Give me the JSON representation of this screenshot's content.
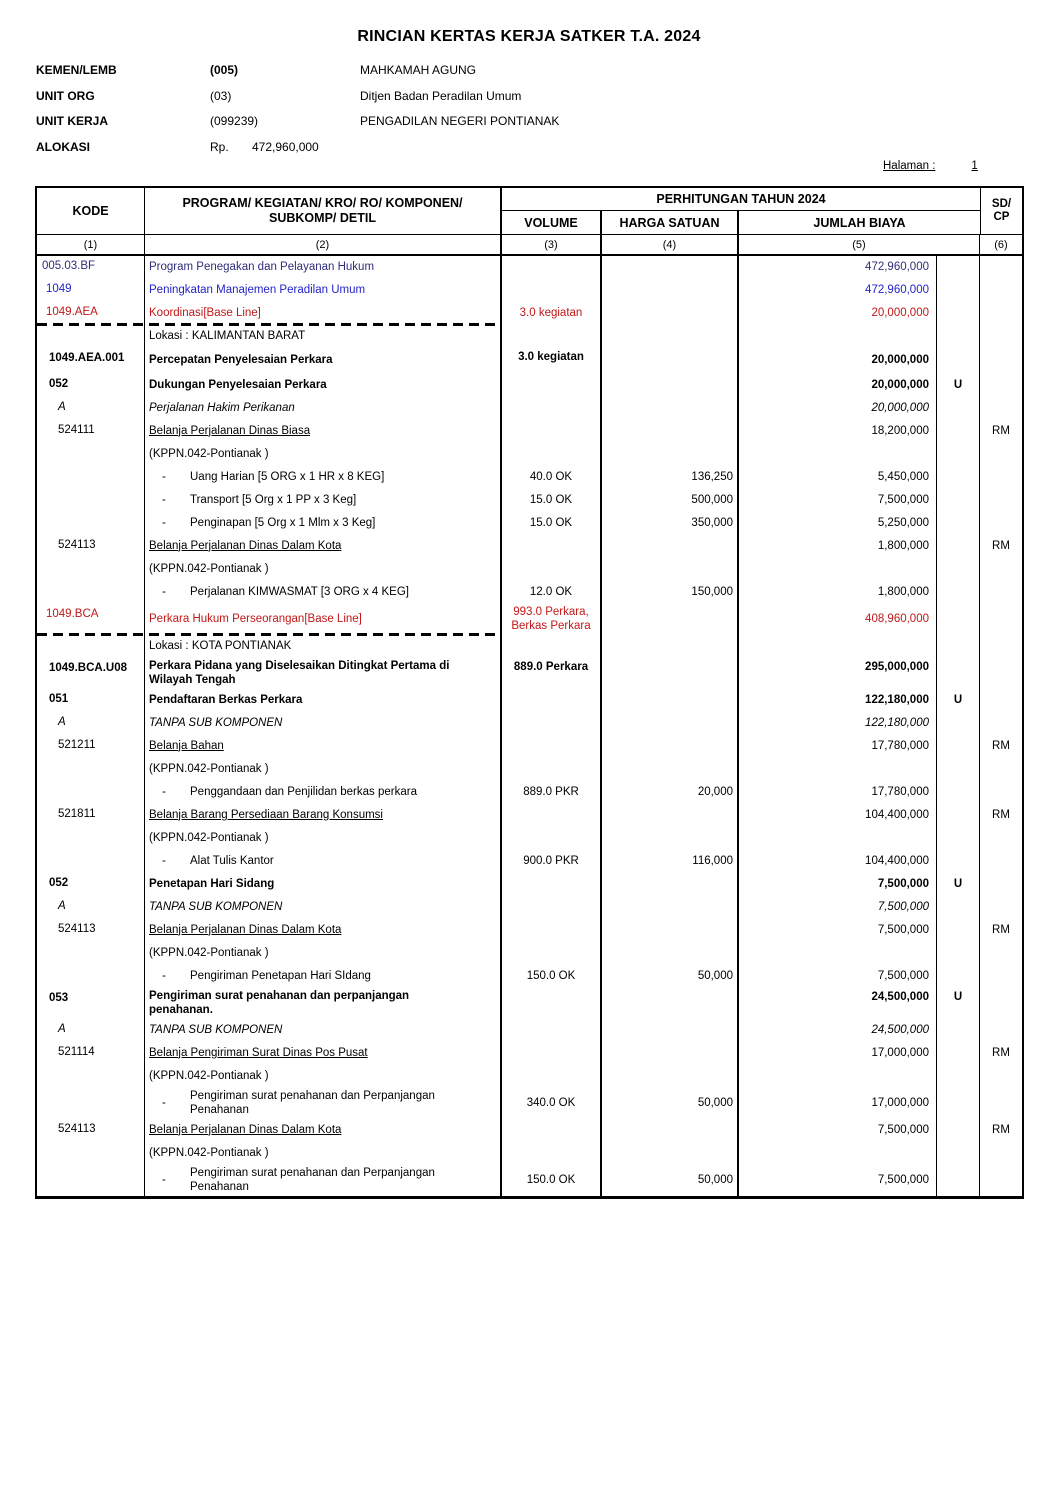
{
  "title": "RINCIAN KERTAS KERJA SATKER T.A. 2024",
  "page_label": "Halaman :",
  "page_number": "1",
  "meta": [
    {
      "label": "KEMEN/LEMB",
      "code": "(005)",
      "value": "MAHKAMAH AGUNG"
    },
    {
      "label": "UNIT ORG",
      "code": "(03)",
      "value": "Ditjen Badan Peradilan Umum"
    },
    {
      "label": "UNIT KERJA",
      "code": "(099239)",
      "value": "PENGADILAN NEGERI PONTIANAK"
    },
    {
      "label": "ALOKASI",
      "code": "Rp.",
      "value": "472,960,000"
    }
  ],
  "colors": {
    "program": "#2E2E7A",
    "kegiatan": "#2323C8",
    "kro": "#C01818",
    "text": "#000000"
  },
  "table": {
    "headers": {
      "kode": "KODE",
      "program_line1": "PROGRAM/ KEGIATAN/ KRO/ RO/ KOMPONEN/",
      "program_line2": "SUBKOMP/ DETIL",
      "perhitungan": "PERHITUNGAN TAHUN 2024",
      "volume": "VOLUME",
      "harga_satuan": "HARGA SATUAN",
      "jumlah_biaya": "JUMLAH BIAYA",
      "sd_line1": "SD/",
      "sd_line2": "CP",
      "col_numbers": [
        "(1)",
        "(2)",
        "(3)",
        "(4)",
        "(5)",
        "(6)"
      ]
    },
    "rows": [
      {
        "style": "program",
        "kode": "005.03.BF",
        "desc": "Program Penegakan dan Pelayanan Hukum",
        "jumlah": "472,960,000"
      },
      {
        "style": "kegiatan",
        "kode": "1049",
        "desc": "Peningkatan Manajemen Peradilan Umum",
        "jumlah": "472,960,000"
      },
      {
        "style": "kro",
        "kode": "1049.AEA",
        "desc": "Koordinasi[Base Line]",
        "volume": "3.0 kegiatan",
        "jumlah": "20,000,000"
      },
      {
        "style": "lokasi",
        "desc": "Lokasi : KALIMANTAN BARAT",
        "dashedTop": true
      },
      {
        "style": "ro",
        "kode": "1049.AEA.001",
        "desc": "Percepatan Penyelesaian Perkara",
        "volume": "3.0 kegiatan",
        "jumlah": "20,000,000",
        "volTop": true
      },
      {
        "style": "komponen",
        "kode": "052",
        "desc": "Dukungan Penyelesaian Perkara",
        "jumlah": "20,000,000",
        "flag": "U"
      },
      {
        "style": "sub",
        "kode": "A",
        "desc": "Perjalanan Hakim Perikanan",
        "jumlah": "20,000,000"
      },
      {
        "style": "akun",
        "kode": "524111",
        "desc": "Belanja Perjalanan Dinas Biasa",
        "jumlah": "18,200,000",
        "sdcp": "RM"
      },
      {
        "style": "kppn",
        "desc": "(KPPN.042-Pontianak )"
      },
      {
        "style": "detail",
        "desc": "Uang Harian [5 ORG x 1 HR x 8 KEG]",
        "volume": "40.0 OK",
        "harga": "136,250",
        "jumlah": "5,450,000"
      },
      {
        "style": "detail",
        "desc": "Transport [5 Org x 1 PP x 3 Keg]",
        "volume": "15.0 OK",
        "harga": "500,000",
        "jumlah": "7,500,000"
      },
      {
        "style": "detail",
        "desc": "Penginapan [5 Org x 1 Mlm x 3 Keg]",
        "volume": "15.0 OK",
        "harga": "350,000",
        "jumlah": "5,250,000"
      },
      {
        "style": "akun",
        "kode": "524113",
        "desc": "Belanja Perjalanan Dinas Dalam Kota",
        "jumlah": "1,800,000",
        "sdcp": "RM"
      },
      {
        "style": "kppn",
        "desc": "(KPPN.042-Pontianak )"
      },
      {
        "style": "detail",
        "desc": "Perjalanan KIMWASMAT [3 ORG x 4 KEG]",
        "volume": "12.0 OK",
        "harga": "150,000",
        "jumlah": "1,800,000"
      },
      {
        "style": "kro",
        "kode": "1049.BCA",
        "desc": "Perkara Hukum Perseorangan[Base Line]",
        "volume": "993.0 Perkara,\nBerkas Perkara",
        "jumlah": "408,960,000"
      },
      {
        "style": "lokasi",
        "desc": "Lokasi : KOTA PONTIANAK",
        "dashedTop": true
      },
      {
        "style": "ro",
        "kode": "1049.BCA.U08",
        "desc": "Perkara Pidana yang Diselesaikan Ditingkat Pertama di\nWilayah Tengah",
        "volume": "889.0 Perkara",
        "jumlah": "295,000,000",
        "volTop": true,
        "topAlign": true
      },
      {
        "style": "komponen",
        "kode": "051",
        "desc": "Pendaftaran Berkas Perkara",
        "jumlah": "122,180,000",
        "flag": "U"
      },
      {
        "style": "sub",
        "kode": "A",
        "desc": "TANPA SUB KOMPONEN",
        "jumlah": "122,180,000"
      },
      {
        "style": "akun",
        "kode": "521211",
        "desc": "Belanja Bahan",
        "jumlah": "17,780,000",
        "sdcp": "RM"
      },
      {
        "style": "kppn",
        "desc": "(KPPN.042-Pontianak )"
      },
      {
        "style": "detail",
        "desc": "Penggandaan dan Penjilidan berkas perkara",
        "volume": "889.0 PKR",
        "harga": "20,000",
        "jumlah": "17,780,000"
      },
      {
        "style": "akun",
        "kode": "521811",
        "desc": "Belanja Barang Persediaan Barang Konsumsi",
        "jumlah": "104,400,000",
        "sdcp": "RM"
      },
      {
        "style": "kppn",
        "desc": "(KPPN.042-Pontianak )"
      },
      {
        "style": "detail",
        "desc": "Alat Tulis Kantor",
        "volume": "900.0 PKR",
        "harga": "116,000",
        "jumlah": "104,400,000"
      },
      {
        "style": "komponen",
        "kode": "052",
        "desc": "Penetapan Hari Sidang",
        "jumlah": "7,500,000",
        "flag": "U"
      },
      {
        "style": "sub",
        "kode": "A",
        "desc": "TANPA SUB KOMPONEN",
        "jumlah": "7,500,000"
      },
      {
        "style": "akun",
        "kode": "524113",
        "desc": "Belanja Perjalanan Dinas Dalam Kota",
        "jumlah": "7,500,000",
        "sdcp": "RM"
      },
      {
        "style": "kppn",
        "desc": "(KPPN.042-Pontianak )"
      },
      {
        "style": "detail",
        "desc": "Pengiriman Penetapan Hari SIdang",
        "volume": "150.0 OK",
        "harga": "50,000",
        "jumlah": "7,500,000"
      },
      {
        "style": "komponen",
        "kode": "053",
        "desc": "Pengiriman surat penahanan dan perpanjangan\npenahanan.",
        "jumlah": "24,500,000",
        "flag": "U",
        "topAlign": true
      },
      {
        "style": "sub",
        "kode": "A",
        "desc": "TANPA SUB KOMPONEN",
        "jumlah": "24,500,000"
      },
      {
        "style": "akun",
        "kode": "521114",
        "desc": "Belanja Pengiriman Surat Dinas Pos Pusat",
        "jumlah": "17,000,000",
        "sdcp": "RM"
      },
      {
        "style": "kppn",
        "desc": "(KPPN.042-Pontianak )"
      },
      {
        "style": "detail",
        "desc": "Pengiriman surat penahanan dan Perpanjangan\nPenahanan",
        "volume": "340.0 OK",
        "harga": "50,000",
        "jumlah": "17,000,000"
      },
      {
        "style": "akun",
        "kode": "524113",
        "desc": "Belanja Perjalanan Dinas Dalam Kota",
        "jumlah": "7,500,000",
        "sdcp": "RM"
      },
      {
        "style": "kppn",
        "desc": "(KPPN.042-Pontianak )"
      },
      {
        "style": "detail",
        "desc": "Pengiriman surat penahanan dan Perpanjangan\nPenahanan",
        "volume": "150.0 OK",
        "harga": "50,000",
        "jumlah": "7,500,000"
      }
    ]
  }
}
